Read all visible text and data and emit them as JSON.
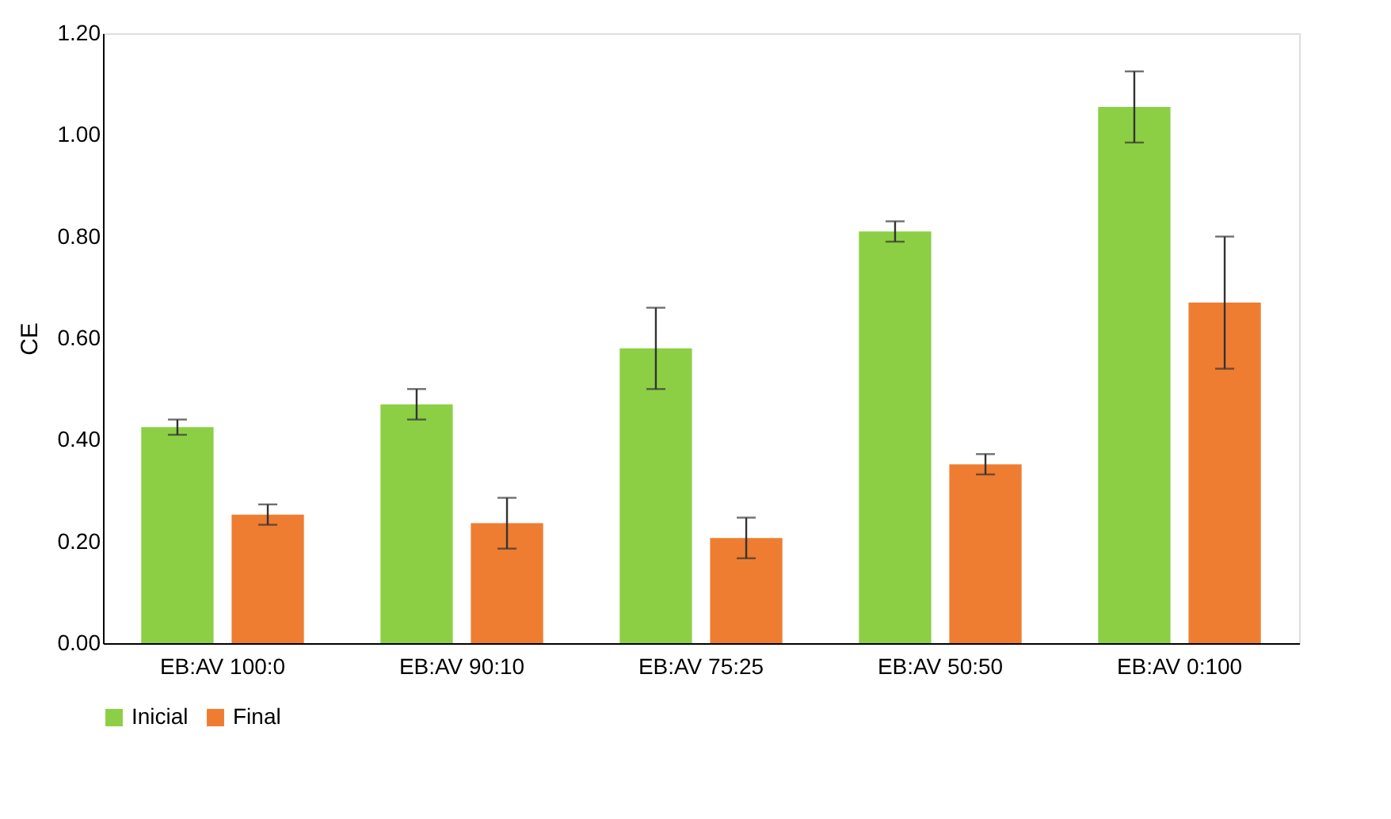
{
  "chart_data": {
    "type": "bar",
    "ylabel": "CE",
    "categories": [
      "EB:AV  100:0",
      "EB:AV  90:10",
      "EB:AV  75:25",
      "EB:AV  50:50",
      "EB:AV  0:100"
    ],
    "series": [
      {
        "name": "Inicial",
        "color": "#8ccf45",
        "values": [
          0.425,
          0.47,
          0.58,
          0.81,
          1.055
        ],
        "errors": [
          0.015,
          0.03,
          0.08,
          0.02,
          0.07
        ]
      },
      {
        "name": "Final",
        "color": "#ee7d31",
        "values": [
          0.253,
          0.236,
          0.207,
          0.352,
          0.67
        ],
        "errors": [
          0.02,
          0.05,
          0.04,
          0.02,
          0.13
        ]
      }
    ],
    "ylim": [
      0,
      1.2
    ],
    "yticks": [
      {
        "value": 0,
        "label": "0.00"
      },
      {
        "value": 0.2,
        "label": "0.20"
      },
      {
        "value": 0.4,
        "label": "0.40"
      },
      {
        "value": 0.6,
        "label": "0.60"
      },
      {
        "value": 0.8,
        "label": "0.80"
      },
      {
        "value": 1.0,
        "label": "1.00"
      },
      {
        "value": 1.2,
        "label": "1.20"
      }
    ],
    "grid": false,
    "legend": "bottom"
  }
}
